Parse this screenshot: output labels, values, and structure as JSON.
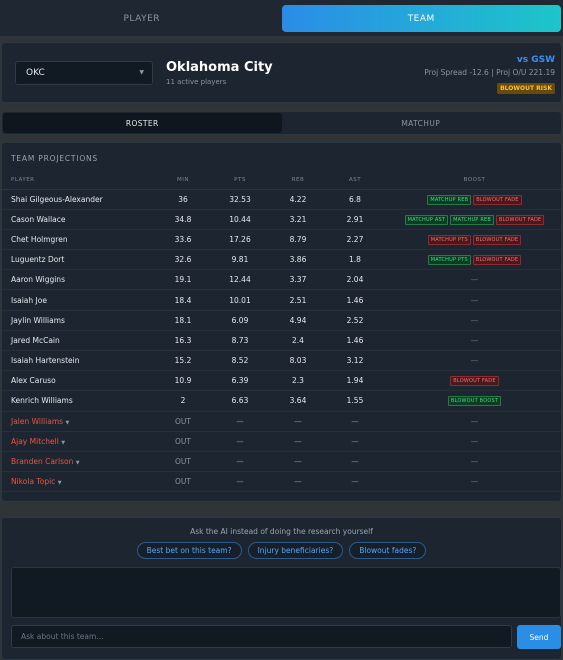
{
  "top_tabs": [
    {
      "label": "PLAYER",
      "active": false
    },
    {
      "label": "TEAM",
      "active": true
    }
  ],
  "team": {
    "select_value": "OKC",
    "name": "Oklahoma City",
    "subtitle": "11 active players",
    "opponent": "vs GSW",
    "spread": "Proj Spread -12.6 | Proj O/U 221.19",
    "risk_badge": "BLOWOUT RISK"
  },
  "sub_tabs": [
    {
      "label": "ROSTER",
      "active": true
    },
    {
      "label": "MATCHUP",
      "active": false
    }
  ],
  "projections": {
    "title": "TEAM PROJECTIONS",
    "columns": [
      "PLAYER",
      "MIN",
      "PTS",
      "REB",
      "AST",
      "BOOST"
    ],
    "rows": [
      {
        "player": "Shai Gilgeous-Alexander",
        "min": "36",
        "pts": "32.53",
        "reb": "4.22",
        "ast": "6.8",
        "boosts": [
          {
            "label": "MATCHUP REB",
            "color": "green"
          },
          {
            "label": "BLOWOUT FADE",
            "color": "red"
          }
        ]
      },
      {
        "player": "Cason Wallace",
        "min": "34.8",
        "pts": "10.44",
        "reb": "3.21",
        "ast": "2.91",
        "boosts": [
          {
            "label": "MATCHUP AST",
            "color": "green"
          },
          {
            "label": "MATCHUP REB",
            "color": "green"
          },
          {
            "label": "BLOWOUT FADE",
            "color": "red"
          }
        ]
      },
      {
        "player": "Chet Holmgren",
        "min": "33.6",
        "pts": "17.26",
        "reb": "8.79",
        "ast": "2.27",
        "boosts": [
          {
            "label": "MATCHUP PTS",
            "color": "red"
          },
          {
            "label": "BLOWOUT FADE",
            "color": "red"
          }
        ]
      },
      {
        "player": "Luguentz Dort",
        "min": "32.6",
        "pts": "9.81",
        "reb": "3.86",
        "ast": "1.8",
        "boosts": [
          {
            "label": "MATCHUP PTS",
            "color": "green"
          },
          {
            "label": "BLOWOUT FADE",
            "color": "red"
          }
        ]
      },
      {
        "player": "Aaron Wiggins",
        "min": "19.1",
        "pts": "12.44",
        "reb": "3.37",
        "ast": "2.04",
        "boosts": []
      },
      {
        "player": "Isaiah Joe",
        "min": "18.4",
        "pts": "10.01",
        "reb": "2.51",
        "ast": "1.46",
        "boosts": []
      },
      {
        "player": "Jaylin Williams",
        "min": "18.1",
        "pts": "6.09",
        "reb": "4.94",
        "ast": "2.52",
        "boosts": []
      },
      {
        "player": "Jared McCain",
        "min": "16.3",
        "pts": "8.73",
        "reb": "2.4",
        "ast": "1.46",
        "boosts": []
      },
      {
        "player": "Isaiah Hartenstein",
        "min": "15.2",
        "pts": "8.52",
        "reb": "8.03",
        "ast": "3.12",
        "boosts": []
      },
      {
        "player": "Alex Caruso",
        "min": "10.9",
        "pts": "6.39",
        "reb": "2.3",
        "ast": "1.94",
        "boosts": [
          {
            "label": "BLOWOUT FADE",
            "color": "red"
          }
        ]
      },
      {
        "player": "Kenrich Williams",
        "min": "2",
        "pts": "6.63",
        "reb": "3.64",
        "ast": "1.55",
        "boosts": [
          {
            "label": "BLOWOUT BOOST",
            "color": "green"
          }
        ]
      },
      {
        "player": "Jalen Williams",
        "out": true,
        "min": "OUT",
        "pts": "—",
        "reb": "—",
        "ast": "—",
        "boosts": []
      },
      {
        "player": "Ajay Mitchell",
        "out": true,
        "min": "OUT",
        "pts": "—",
        "reb": "—",
        "ast": "—",
        "boosts": []
      },
      {
        "player": "Branden Carlson",
        "out": true,
        "min": "OUT",
        "pts": "—",
        "reb": "—",
        "ast": "—",
        "boosts": []
      },
      {
        "player": "Nikola Topic",
        "out": true,
        "min": "OUT",
        "pts": "—",
        "reb": "—",
        "ast": "—",
        "boosts": []
      }
    ],
    "empty_boost": "—",
    "out_caret": "▼"
  },
  "ai": {
    "prompt": "Ask the AI instead of doing the research yourself",
    "chips": [
      "Best bet on this team?",
      "Injury beneficiaries?",
      "Blowout fades?"
    ],
    "input_placeholder": "Ask about this team...",
    "send_label": "Send"
  },
  "colors": {
    "accent_start": "#2b8ce8",
    "accent_end": "#1cc6c9",
    "out_red": "#f0543c",
    "badge_green": "#3edc7f",
    "badge_red": "#ff6b6b"
  }
}
